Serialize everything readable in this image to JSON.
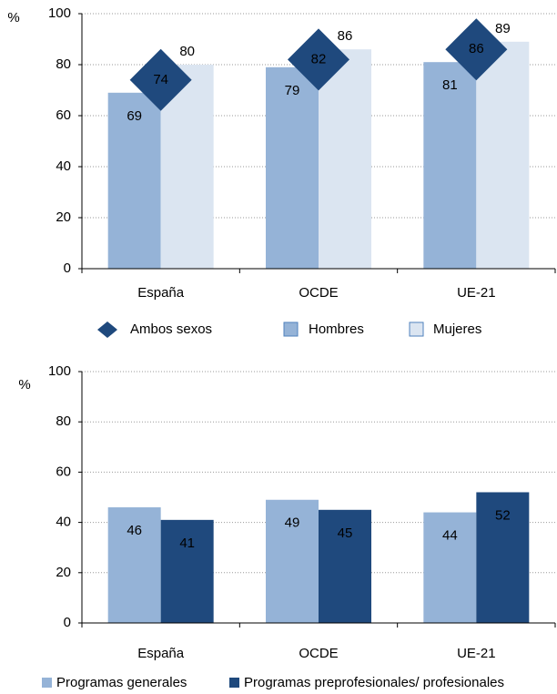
{
  "chart_data": [
    {
      "type": "bar",
      "y_label": "%",
      "categories": [
        "España",
        "OCDE",
        "UE-21"
      ],
      "series": [
        {
          "name": "Ambos sexos",
          "color": "#1f497d",
          "marker": "diamond",
          "values": [
            74,
            82,
            86
          ]
        },
        {
          "name": "Hombres",
          "color": "#95b3d7",
          "label_position": "inside",
          "values": [
            69,
            79,
            81
          ]
        },
        {
          "name": "Mujeres",
          "color": "#dbe5f1",
          "label_position": "above",
          "values": [
            80,
            86,
            89
          ]
        }
      ],
      "ylim": [
        0,
        100
      ],
      "yticks": [
        0,
        20,
        40,
        60,
        80,
        100
      ],
      "grid": true
    },
    {
      "type": "bar",
      "y_label": "%",
      "categories": [
        "España",
        "OCDE",
        "UE-21"
      ],
      "series": [
        {
          "name": "Programas generales",
          "color": "#95b3d7",
          "label_position": "inside",
          "values": [
            46,
            49,
            44
          ]
        },
        {
          "name": "Programas preprofesionales/ profesionales",
          "color": "#1f497d",
          "label_position": "inside",
          "values": [
            41,
            45,
            52
          ]
        }
      ],
      "ylim": [
        0,
        100
      ],
      "yticks": [
        0,
        20,
        40,
        60,
        80,
        100
      ],
      "grid": true
    }
  ]
}
